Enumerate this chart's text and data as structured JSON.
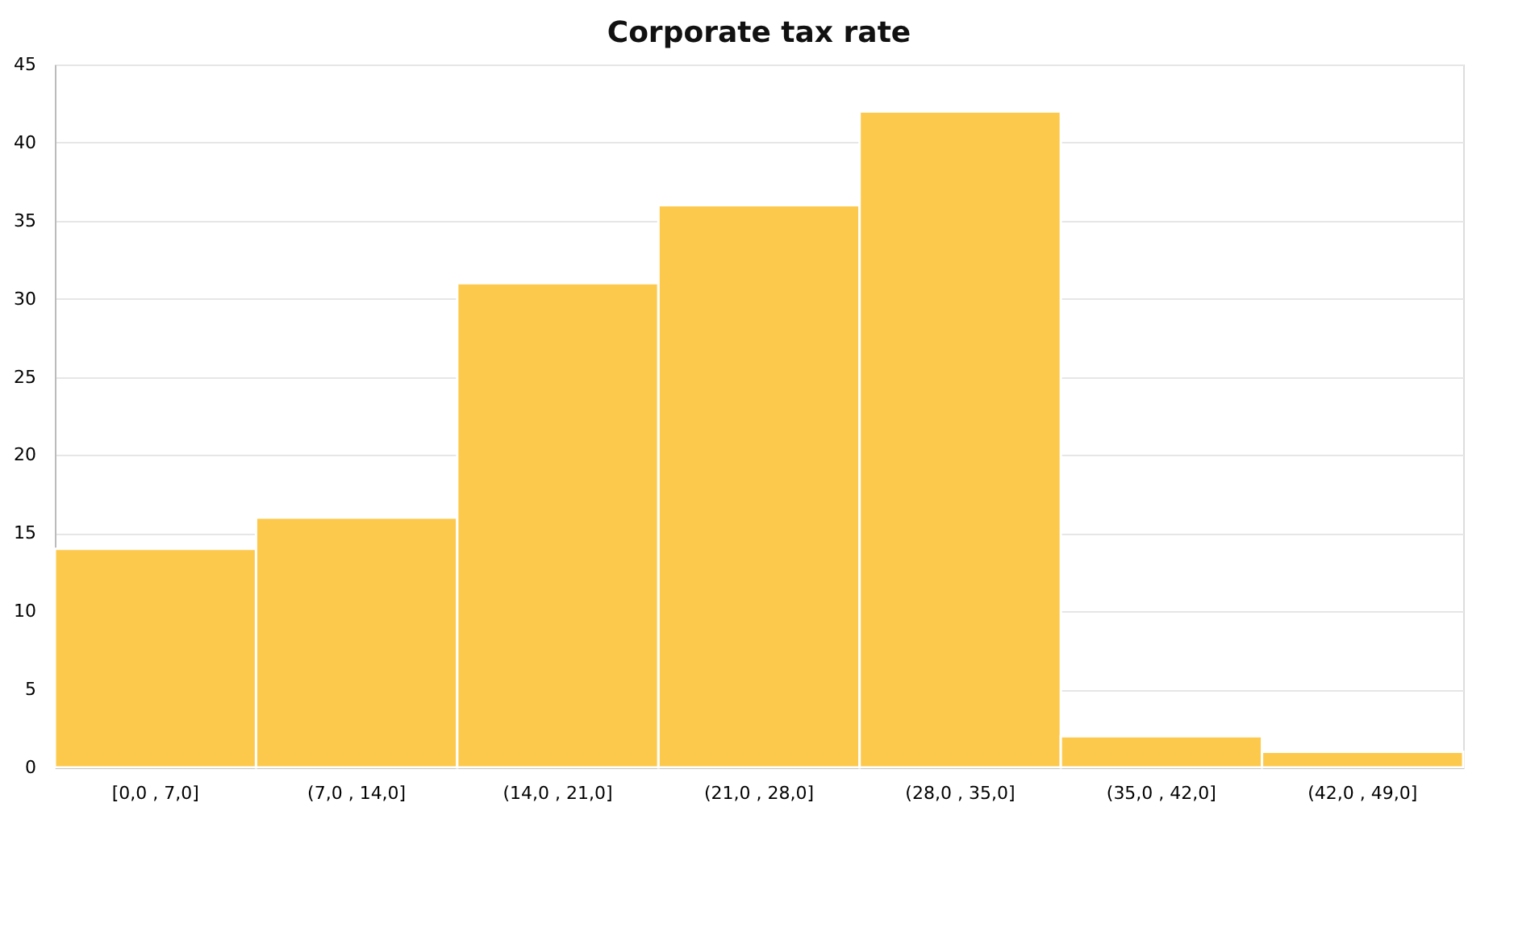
{
  "chart_data": {
    "type": "bar",
    "title": "Corporate tax rate",
    "categories": [
      "[0,0 , 7,0]",
      "(7,0 , 14,0]",
      "(14,0 , 21,0]",
      "(21,0 , 28,0]",
      "(28,0 , 35,0]",
      "(35,0 , 42,0]",
      "(42,0 , 49,0]"
    ],
    "values": [
      14,
      16,
      31,
      36,
      42,
      2,
      1
    ],
    "color": "#fdc94c",
    "ylim": [
      0,
      45
    ],
    "yticks": [
      0,
      5,
      10,
      15,
      20,
      25,
      30,
      35,
      40,
      45
    ],
    "grid": "y"
  }
}
